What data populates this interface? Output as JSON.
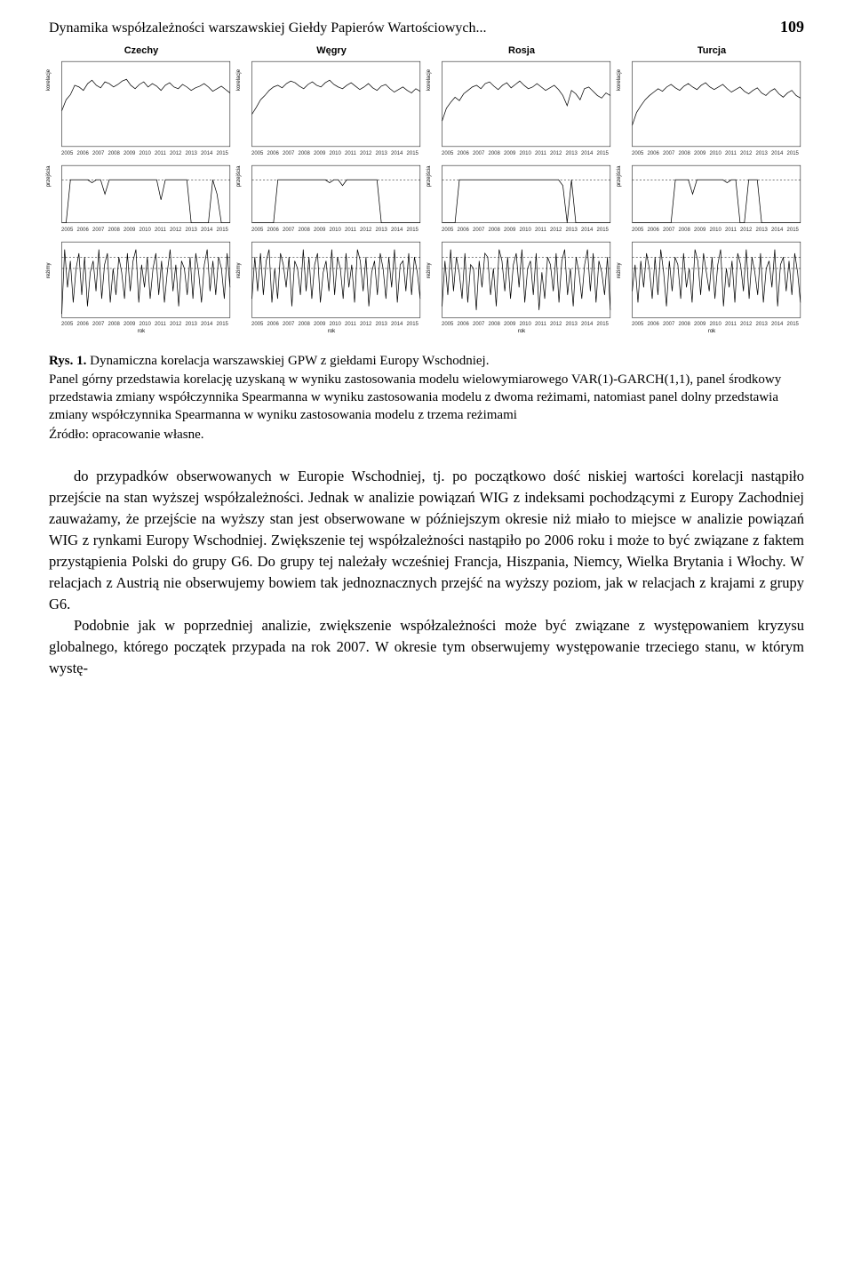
{
  "header": {
    "running_title": "Dynamika współzależności warszawskiej Giełdy Papierów Wartościowych...",
    "page_number": "109"
  },
  "charts": {
    "columns": [
      "Czechy",
      "Węgry",
      "Rosja",
      "Turcja"
    ],
    "years": [
      "2005",
      "2006",
      "2007",
      "2008",
      "2009",
      "2010",
      "2011",
      "2012",
      "2013",
      "2014",
      "2015"
    ],
    "row_ylabels": [
      "korelacje",
      "przejścia",
      "reżimy"
    ],
    "row_footer": "rok",
    "axis_font_size": 6,
    "title_font_size": 11,
    "line_color": "#000000",
    "grid_color": "#808080",
    "background": "#ffffff",
    "row1": {
      "ylim": [
        0.0,
        1.0
      ],
      "yticks": [
        0.0,
        0.2,
        0.4,
        0.6,
        0.8,
        1.0
      ],
      "series": [
        [
          0.42,
          0.55,
          0.61,
          0.72,
          0.7,
          0.66,
          0.74,
          0.78,
          0.72,
          0.69,
          0.76,
          0.74,
          0.7,
          0.73,
          0.77,
          0.79,
          0.72,
          0.68,
          0.73,
          0.76,
          0.7,
          0.74,
          0.71,
          0.66,
          0.72,
          0.75,
          0.7,
          0.68,
          0.73,
          0.7,
          0.66,
          0.69,
          0.71,
          0.74,
          0.7,
          0.65,
          0.68,
          0.71,
          0.67,
          0.63
        ],
        [
          0.38,
          0.46,
          0.55,
          0.6,
          0.66,
          0.7,
          0.72,
          0.69,
          0.74,
          0.77,
          0.75,
          0.71,
          0.68,
          0.73,
          0.76,
          0.72,
          0.7,
          0.75,
          0.78,
          0.73,
          0.7,
          0.68,
          0.72,
          0.75,
          0.71,
          0.67,
          0.7,
          0.74,
          0.69,
          0.66,
          0.71,
          0.73,
          0.68,
          0.64,
          0.67,
          0.7,
          0.66,
          0.63,
          0.68,
          0.65
        ],
        [
          0.3,
          0.45,
          0.52,
          0.58,
          0.54,
          0.62,
          0.66,
          0.7,
          0.72,
          0.68,
          0.74,
          0.76,
          0.71,
          0.67,
          0.72,
          0.75,
          0.69,
          0.73,
          0.77,
          0.72,
          0.68,
          0.7,
          0.74,
          0.7,
          0.66,
          0.69,
          0.72,
          0.67,
          0.6,
          0.48,
          0.66,
          0.62,
          0.55,
          0.68,
          0.7,
          0.65,
          0.6,
          0.57,
          0.63,
          0.6
        ],
        [
          0.25,
          0.4,
          0.48,
          0.55,
          0.6,
          0.64,
          0.68,
          0.65,
          0.7,
          0.73,
          0.69,
          0.66,
          0.71,
          0.74,
          0.7,
          0.67,
          0.72,
          0.75,
          0.7,
          0.67,
          0.7,
          0.73,
          0.68,
          0.64,
          0.67,
          0.7,
          0.65,
          0.62,
          0.66,
          0.69,
          0.63,
          0.6,
          0.65,
          0.68,
          0.62,
          0.58,
          0.63,
          0.66,
          0.6,
          0.57
        ]
      ]
    },
    "row2": {
      "ylim": [
        1.0,
        3.0
      ],
      "yticks": [
        1.0,
        1.5,
        2.0,
        2.5,
        3.0
      ],
      "ref_lines": [
        2.5
      ],
      "series": [
        [
          1.0,
          1.0,
          2.5,
          2.5,
          2.5,
          2.5,
          2.5,
          2.4,
          2.5,
          2.5,
          2.0,
          2.5,
          2.5,
          2.5,
          2.5,
          2.5,
          2.5,
          2.5,
          2.5,
          2.5,
          2.5,
          2.5,
          2.5,
          1.8,
          2.5,
          2.5,
          2.5,
          2.5,
          2.5,
          2.5,
          1.0,
          1.0,
          1.0,
          1.0,
          1.0,
          2.5,
          2.0,
          1.0,
          1.0,
          1.0
        ],
        [
          1.0,
          1.0,
          1.0,
          1.0,
          1.0,
          1.0,
          2.5,
          2.5,
          2.5,
          2.5,
          2.5,
          2.5,
          2.5,
          2.5,
          2.5,
          2.5,
          2.5,
          2.5,
          2.4,
          2.5,
          2.5,
          2.3,
          2.5,
          2.5,
          2.5,
          2.5,
          2.5,
          2.5,
          2.5,
          2.5,
          1.0,
          1.0,
          1.0,
          1.0,
          1.0,
          1.0,
          1.0,
          1.0,
          1.0,
          1.0
        ],
        [
          1.0,
          1.0,
          1.0,
          1.0,
          2.5,
          2.5,
          2.5,
          2.5,
          2.5,
          2.5,
          2.5,
          2.5,
          2.5,
          2.5,
          2.5,
          2.5,
          2.5,
          2.5,
          2.5,
          2.5,
          2.5,
          2.5,
          2.5,
          2.5,
          2.5,
          2.5,
          2.5,
          2.5,
          2.3,
          1.0,
          2.5,
          1.0,
          1.0,
          1.0,
          1.0,
          1.0,
          1.0,
          1.0,
          1.0,
          1.0
        ],
        [
          1.0,
          1.0,
          1.0,
          1.0,
          1.0,
          1.0,
          1.0,
          1.0,
          1.0,
          1.0,
          2.5,
          2.5,
          2.5,
          2.5,
          2.0,
          2.5,
          2.5,
          2.5,
          2.5,
          2.5,
          2.5,
          2.5,
          2.4,
          2.5,
          2.5,
          1.0,
          1.0,
          2.5,
          2.5,
          2.5,
          1.0,
          1.0,
          1.0,
          1.0,
          1.0,
          1.0,
          1.0,
          1.0,
          1.0,
          1.0
        ]
      ]
    },
    "row3": {
      "ylim": [
        -1.0,
        1.0
      ],
      "yticks": [
        -1.0,
        -0.5,
        0.0,
        0.5,
        1.0
      ],
      "ref_lines": [
        0.3,
        0.6
      ],
      "series": [
        [
          -0.9,
          0.8,
          -0.2,
          0.5,
          -0.6,
          0.3,
          0.7,
          -0.4,
          0.6,
          -0.7,
          0.2,
          0.5,
          -0.3,
          0.8,
          -0.5,
          0.4,
          0.7,
          -0.6,
          0.3,
          -0.4,
          0.6,
          0.2,
          -0.5,
          0.7,
          -0.3,
          0.5,
          0.8,
          -0.6,
          0.4,
          -0.2,
          0.6,
          -0.5,
          0.3,
          0.7,
          -0.4,
          0.5,
          -0.6,
          0.2,
          0.8,
          -0.3,
          0.4,
          -0.7,
          0.5,
          0.3,
          -0.4,
          0.6,
          -0.5,
          0.7,
          0.2,
          -0.6,
          0.4,
          0.8,
          -0.3,
          0.5,
          -0.4,
          0.6,
          0.3,
          -0.5,
          0.7,
          -0.2
        ],
        [
          -0.5,
          0.6,
          -0.3,
          0.7,
          -0.4,
          0.5,
          0.8,
          -0.6,
          0.3,
          -0.5,
          0.7,
          0.4,
          -0.2,
          0.6,
          -0.7,
          0.5,
          0.3,
          -0.4,
          0.8,
          -0.3,
          0.6,
          -0.5,
          0.4,
          0.7,
          -0.6,
          0.2,
          0.5,
          -0.3,
          0.8,
          -0.4,
          0.6,
          0.3,
          -0.5,
          0.7,
          -0.2,
          0.4,
          -0.6,
          0.8,
          0.5,
          -0.3,
          0.6,
          -0.7,
          0.2,
          0.5,
          -0.4,
          0.7,
          0.3,
          -0.5,
          0.6,
          -0.2,
          0.8,
          -0.6,
          0.4,
          0.5,
          -0.3,
          0.7,
          -0.4,
          0.6,
          0.2,
          -0.5
        ],
        [
          -0.7,
          0.5,
          -0.4,
          0.8,
          -0.3,
          0.6,
          0.2,
          -0.5,
          0.7,
          -0.6,
          0.4,
          0.3,
          -0.8,
          0.5,
          -0.2,
          0.7,
          0.6,
          -0.4,
          0.3,
          -0.7,
          0.8,
          0.5,
          -0.3,
          0.6,
          -0.5,
          0.4,
          0.7,
          -0.2,
          0.8,
          -0.6,
          0.3,
          0.5,
          -0.4,
          0.7,
          -0.8,
          0.2,
          -0.5,
          0.6,
          0.4,
          -0.3,
          0.7,
          -0.6,
          0.5,
          0.8,
          -0.4,
          0.3,
          -0.7,
          0.6,
          0.2,
          -0.5,
          0.4,
          0.8,
          -0.3,
          0.7,
          -0.6,
          0.5,
          0.2,
          -0.4,
          0.6,
          -0.8
        ],
        [
          -0.3,
          0.4,
          -0.6,
          0.5,
          -0.2,
          0.7,
          0.3,
          -0.5,
          0.6,
          -0.4,
          0.8,
          0.2,
          -0.7,
          0.5,
          -0.3,
          0.6,
          0.4,
          -0.5,
          0.7,
          -0.2,
          0.3,
          -0.6,
          0.8,
          0.5,
          -0.4,
          0.7,
          0.2,
          -0.3,
          0.6,
          -0.5,
          0.4,
          0.8,
          -0.7,
          0.3,
          -0.2,
          0.5,
          -0.6,
          0.7,
          0.4,
          -0.3,
          0.8,
          -0.5,
          0.6,
          0.2,
          -0.4,
          0.7,
          -0.6,
          0.3,
          0.5,
          -0.2,
          0.8,
          -0.7,
          0.4,
          0.6,
          -0.3,
          0.5,
          -0.4,
          0.7,
          0.2,
          -0.6
        ]
      ]
    }
  },
  "caption": {
    "label": "Rys. 1.",
    "title": "Dynamiczna korelacja warszawskiej GPW z giełdami Europy Wschodniej.",
    "desc": "Panel górny przedstawia korelację uzyskaną w wyniku zastosowania modelu wielowymiarowego VAR(1)-GARCH(1,1), panel środkowy przedstawia zmiany współczynnika Spearmanna w wyniku zastosowania modelu z dwoma reżimami, natomiast panel dolny przedstawia zmiany współczynnika Spearmanna w wyniku zastosowania modelu z trzema reżimami"
  },
  "source": "Źródło: opracowanie własne.",
  "body": {
    "p1": "do przypadków obserwowanych w Europie Wschodniej, tj. po początkowo dość niskiej wartości korelacji nastąpiło przejście na stan wyższej współzależności. Jednak w analizie powiązań WIG z indeksami pochodzącymi z Europy Zachodniej zauważamy, że przejście na wyższy stan jest obserwowane w późniejszym okresie niż miało to miejsce w analizie powiązań WIG z rynkami Europy Wschodniej. Zwiększenie tej współzależności nastąpiło po 2006 roku i może to być związane z faktem przystąpienia Polski do grupy G6. Do grupy tej należały wcześniej Francja, Hiszpania, Niemcy, Wielka Brytania i Włochy. W relacjach z Austrią nie obserwujemy bowiem tak jednoznacznych przejść na wyższy poziom, jak w relacjach z krajami z grupy G6.",
    "p2": "Podobnie jak w poprzedniej analizie, zwiększenie współzależności może być związane z występowaniem kryzysu globalnego, którego początek przypada na rok 2007. W okresie tym obserwujemy występowanie trzeciego stanu, w którym wystę-"
  }
}
